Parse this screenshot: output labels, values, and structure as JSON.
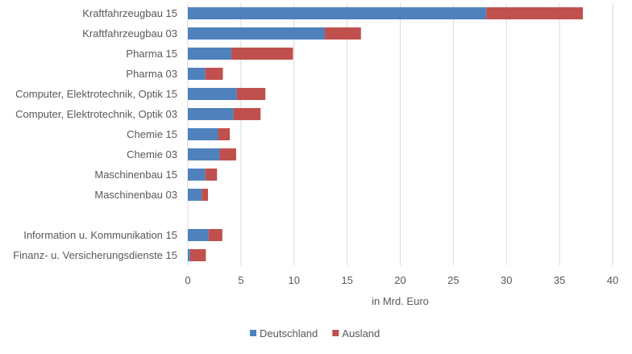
{
  "chart_data": {
    "type": "bar",
    "orientation": "horizontal",
    "stacked": true,
    "categories": [
      "Kraftfahrzeugbau 15",
      "Kraftfahrzeugbau 03",
      "Pharma 15",
      "Pharma 03",
      "Computer, Elektrotechnik, Optik 15",
      "Computer, Elektrotechnik, Optik 03",
      "Chemie 15",
      "Chemie 03",
      "Maschinenbau 15",
      "Maschinenbau 03",
      "",
      "Information u. Kommunikation 15",
      "Finanz- u. Versicherungsdienste 15"
    ],
    "series": [
      {
        "name": "Deutschland",
        "color": "#4F81BD",
        "values": [
          28.1,
          12.9,
          4.1,
          1.65,
          4.6,
          4.3,
          2.85,
          3.0,
          1.65,
          1.3,
          null,
          1.95,
          0.2
        ]
      },
      {
        "name": "Ausland",
        "color": "#C0504D",
        "values": [
          9.1,
          3.4,
          5.8,
          1.65,
          2.7,
          2.55,
          1.1,
          1.55,
          1.1,
          0.6,
          null,
          1.3,
          1.5
        ]
      }
    ],
    "xlabel": "in Mrd. Euro",
    "xlim": [
      0,
      40
    ],
    "xticks": [
      0,
      5,
      10,
      15,
      20,
      25,
      30,
      35,
      40
    ],
    "grid": true,
    "legend": "bottom"
  }
}
